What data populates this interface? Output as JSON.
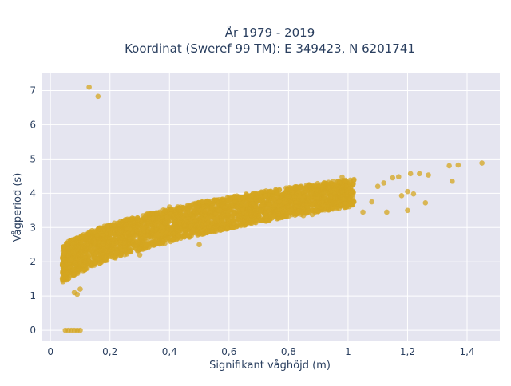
{
  "chart_data": {
    "type": "scatter",
    "title_lines": [
      "År 1979 - 2019",
      "Koordinat (Sweref 99 TM): E 349423, N 6201741"
    ],
    "xlabel": "Signifikant våghöjd (m)",
    "ylabel": "Vågperiod (s)",
    "xlim": [
      -0.03,
      1.51
    ],
    "ylim": [
      -0.3,
      7.5
    ],
    "x_ticks": [
      0,
      0.2,
      0.4,
      0.6,
      0.8,
      1,
      1.2,
      1.4
    ],
    "x_tick_labels": [
      "0",
      "0,2",
      "0,4",
      "0,6",
      "0,8",
      "1",
      "1,2",
      "1,4"
    ],
    "y_ticks": [
      0,
      1,
      2,
      3,
      4,
      5,
      6,
      7
    ],
    "y_tick_labels": [
      "0",
      "1",
      "2",
      "3",
      "4",
      "5",
      "6",
      "7"
    ],
    "grid": true,
    "marker_color": "#d4a520",
    "background_color": "#e5e5f0",
    "series": [
      {
        "points": [
          [
            0.13,
            7.1
          ],
          [
            0.16,
            6.83
          ],
          [
            0.05,
            0.0
          ],
          [
            0.06,
            0.0
          ],
          [
            0.07,
            0.0
          ],
          [
            0.08,
            0.0
          ],
          [
            0.09,
            0.0
          ],
          [
            0.1,
            0.0
          ],
          [
            1.45,
            4.88
          ],
          [
            1.37,
            4.82
          ],
          [
            1.34,
            4.8
          ],
          [
            1.27,
            4.53
          ],
          [
            1.24,
            4.57
          ],
          [
            1.21,
            4.57
          ],
          [
            1.35,
            4.35
          ],
          [
            1.26,
            3.72
          ],
          [
            1.22,
            3.98
          ],
          [
            1.2,
            4.05
          ],
          [
            1.18,
            3.93
          ],
          [
            1.17,
            4.48
          ],
          [
            1.15,
            4.45
          ],
          [
            1.12,
            4.3
          ],
          [
            1.1,
            4.2
          ],
          [
            1.08,
            3.75
          ],
          [
            1.05,
            3.45
          ],
          [
            1.13,
            3.45
          ],
          [
            1.2,
            3.5
          ],
          [
            1.02,
            4.4
          ],
          [
            0.98,
            4.47
          ],
          [
            0.95,
            4.35
          ],
          [
            0.93,
            3.6
          ],
          [
            0.88,
            3.38
          ],
          [
            0.85,
            3.35
          ],
          [
            0.78,
            3.3
          ],
          [
            0.7,
            3.9
          ],
          [
            0.6,
            3.1
          ],
          [
            0.5,
            2.5
          ],
          [
            0.4,
            3.6
          ],
          [
            0.3,
            2.2
          ],
          [
            0.2,
            2.3
          ],
          [
            0.15,
            2.5
          ],
          [
            0.08,
            1.1
          ],
          [
            0.09,
            1.05
          ],
          [
            0.1,
            1.2
          ],
          [
            0.04,
            1.5
          ],
          [
            0.05,
            1.7
          ],
          [
            0.11,
            1.9
          ]
        ]
      }
    ]
  }
}
